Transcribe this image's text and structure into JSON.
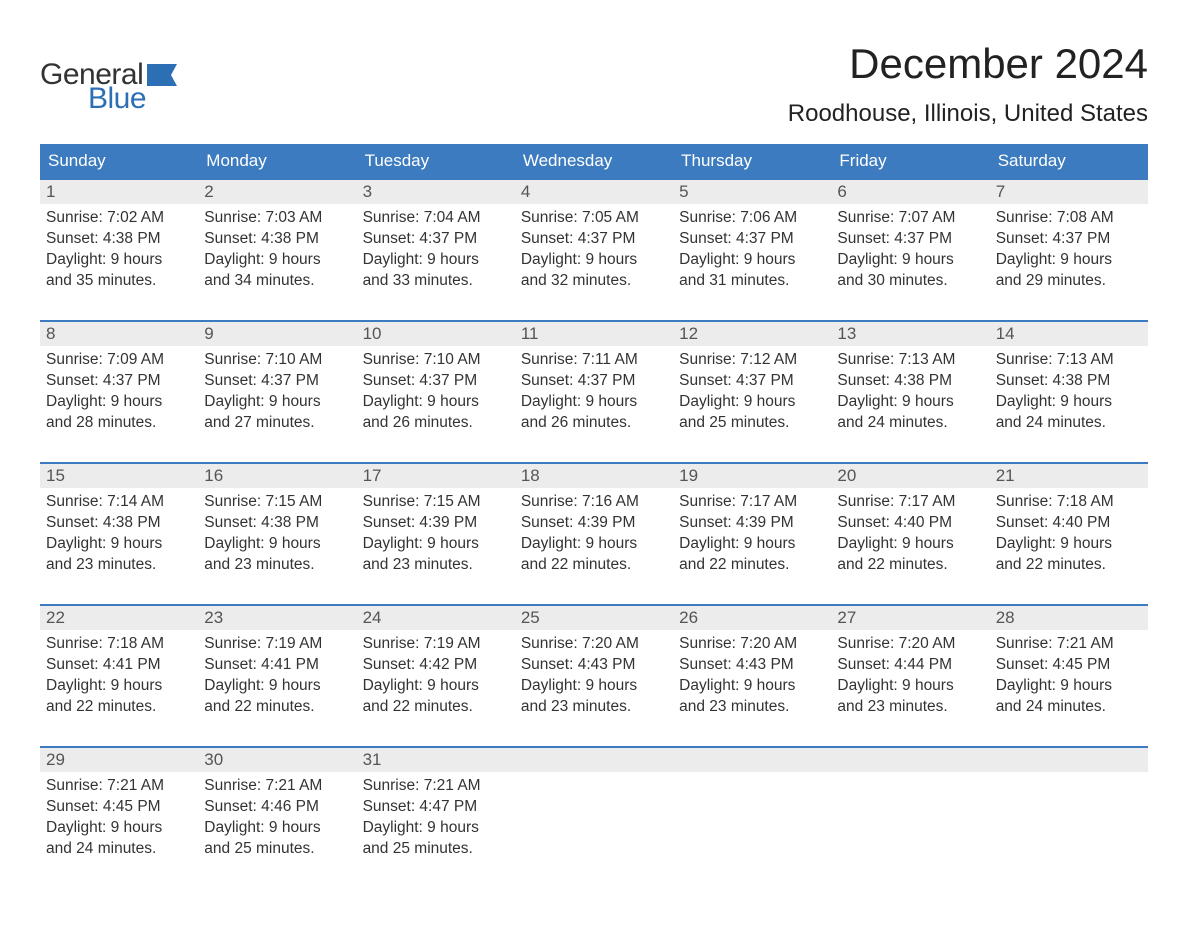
{
  "brand": {
    "word1": "General",
    "word2": "Blue",
    "flag_color": "#2c6fb5",
    "text_color_dark": "#333333",
    "text_color_blue": "#2c6fb5"
  },
  "header": {
    "month_title": "December 2024",
    "location": "Roodhouse, Illinois, United States"
  },
  "calendar": {
    "header_bg": "#3c7bbf",
    "header_fg": "#ffffff",
    "week_border_color": "#3c7bbf",
    "daynum_bg": "#ececec",
    "daynum_fg": "#555555",
    "body_fg": "#333333",
    "page_bg": "#ffffff",
    "dow": [
      "Sunday",
      "Monday",
      "Tuesday",
      "Wednesday",
      "Thursday",
      "Friday",
      "Saturday"
    ],
    "weeks": [
      [
        {
          "num": "1",
          "sunrise": "Sunrise: 7:02 AM",
          "sunset": "Sunset: 4:38 PM",
          "day1": "Daylight: 9 hours",
          "day2": "and 35 minutes."
        },
        {
          "num": "2",
          "sunrise": "Sunrise: 7:03 AM",
          "sunset": "Sunset: 4:38 PM",
          "day1": "Daylight: 9 hours",
          "day2": "and 34 minutes."
        },
        {
          "num": "3",
          "sunrise": "Sunrise: 7:04 AM",
          "sunset": "Sunset: 4:37 PM",
          "day1": "Daylight: 9 hours",
          "day2": "and 33 minutes."
        },
        {
          "num": "4",
          "sunrise": "Sunrise: 7:05 AM",
          "sunset": "Sunset: 4:37 PM",
          "day1": "Daylight: 9 hours",
          "day2": "and 32 minutes."
        },
        {
          "num": "5",
          "sunrise": "Sunrise: 7:06 AM",
          "sunset": "Sunset: 4:37 PM",
          "day1": "Daylight: 9 hours",
          "day2": "and 31 minutes."
        },
        {
          "num": "6",
          "sunrise": "Sunrise: 7:07 AM",
          "sunset": "Sunset: 4:37 PM",
          "day1": "Daylight: 9 hours",
          "day2": "and 30 minutes."
        },
        {
          "num": "7",
          "sunrise": "Sunrise: 7:08 AM",
          "sunset": "Sunset: 4:37 PM",
          "day1": "Daylight: 9 hours",
          "day2": "and 29 minutes."
        }
      ],
      [
        {
          "num": "8",
          "sunrise": "Sunrise: 7:09 AM",
          "sunset": "Sunset: 4:37 PM",
          "day1": "Daylight: 9 hours",
          "day2": "and 28 minutes."
        },
        {
          "num": "9",
          "sunrise": "Sunrise: 7:10 AM",
          "sunset": "Sunset: 4:37 PM",
          "day1": "Daylight: 9 hours",
          "day2": "and 27 minutes."
        },
        {
          "num": "10",
          "sunrise": "Sunrise: 7:10 AM",
          "sunset": "Sunset: 4:37 PM",
          "day1": "Daylight: 9 hours",
          "day2": "and 26 minutes."
        },
        {
          "num": "11",
          "sunrise": "Sunrise: 7:11 AM",
          "sunset": "Sunset: 4:37 PM",
          "day1": "Daylight: 9 hours",
          "day2": "and 26 minutes."
        },
        {
          "num": "12",
          "sunrise": "Sunrise: 7:12 AM",
          "sunset": "Sunset: 4:37 PM",
          "day1": "Daylight: 9 hours",
          "day2": "and 25 minutes."
        },
        {
          "num": "13",
          "sunrise": "Sunrise: 7:13 AM",
          "sunset": "Sunset: 4:38 PM",
          "day1": "Daylight: 9 hours",
          "day2": "and 24 minutes."
        },
        {
          "num": "14",
          "sunrise": "Sunrise: 7:13 AM",
          "sunset": "Sunset: 4:38 PM",
          "day1": "Daylight: 9 hours",
          "day2": "and 24 minutes."
        }
      ],
      [
        {
          "num": "15",
          "sunrise": "Sunrise: 7:14 AM",
          "sunset": "Sunset: 4:38 PM",
          "day1": "Daylight: 9 hours",
          "day2": "and 23 minutes."
        },
        {
          "num": "16",
          "sunrise": "Sunrise: 7:15 AM",
          "sunset": "Sunset: 4:38 PM",
          "day1": "Daylight: 9 hours",
          "day2": "and 23 minutes."
        },
        {
          "num": "17",
          "sunrise": "Sunrise: 7:15 AM",
          "sunset": "Sunset: 4:39 PM",
          "day1": "Daylight: 9 hours",
          "day2": "and 23 minutes."
        },
        {
          "num": "18",
          "sunrise": "Sunrise: 7:16 AM",
          "sunset": "Sunset: 4:39 PM",
          "day1": "Daylight: 9 hours",
          "day2": "and 22 minutes."
        },
        {
          "num": "19",
          "sunrise": "Sunrise: 7:17 AM",
          "sunset": "Sunset: 4:39 PM",
          "day1": "Daylight: 9 hours",
          "day2": "and 22 minutes."
        },
        {
          "num": "20",
          "sunrise": "Sunrise: 7:17 AM",
          "sunset": "Sunset: 4:40 PM",
          "day1": "Daylight: 9 hours",
          "day2": "and 22 minutes."
        },
        {
          "num": "21",
          "sunrise": "Sunrise: 7:18 AM",
          "sunset": "Sunset: 4:40 PM",
          "day1": "Daylight: 9 hours",
          "day2": "and 22 minutes."
        }
      ],
      [
        {
          "num": "22",
          "sunrise": "Sunrise: 7:18 AM",
          "sunset": "Sunset: 4:41 PM",
          "day1": "Daylight: 9 hours",
          "day2": "and 22 minutes."
        },
        {
          "num": "23",
          "sunrise": "Sunrise: 7:19 AM",
          "sunset": "Sunset: 4:41 PM",
          "day1": "Daylight: 9 hours",
          "day2": "and 22 minutes."
        },
        {
          "num": "24",
          "sunrise": "Sunrise: 7:19 AM",
          "sunset": "Sunset: 4:42 PM",
          "day1": "Daylight: 9 hours",
          "day2": "and 22 minutes."
        },
        {
          "num": "25",
          "sunrise": "Sunrise: 7:20 AM",
          "sunset": "Sunset: 4:43 PM",
          "day1": "Daylight: 9 hours",
          "day2": "and 23 minutes."
        },
        {
          "num": "26",
          "sunrise": "Sunrise: 7:20 AM",
          "sunset": "Sunset: 4:43 PM",
          "day1": "Daylight: 9 hours",
          "day2": "and 23 minutes."
        },
        {
          "num": "27",
          "sunrise": "Sunrise: 7:20 AM",
          "sunset": "Sunset: 4:44 PM",
          "day1": "Daylight: 9 hours",
          "day2": "and 23 minutes."
        },
        {
          "num": "28",
          "sunrise": "Sunrise: 7:21 AM",
          "sunset": "Sunset: 4:45 PM",
          "day1": "Daylight: 9 hours",
          "day2": "and 24 minutes."
        }
      ],
      [
        {
          "num": "29",
          "sunrise": "Sunrise: 7:21 AM",
          "sunset": "Sunset: 4:45 PM",
          "day1": "Daylight: 9 hours",
          "day2": "and 24 minutes."
        },
        {
          "num": "30",
          "sunrise": "Sunrise: 7:21 AM",
          "sunset": "Sunset: 4:46 PM",
          "day1": "Daylight: 9 hours",
          "day2": "and 25 minutes."
        },
        {
          "num": "31",
          "sunrise": "Sunrise: 7:21 AM",
          "sunset": "Sunset: 4:47 PM",
          "day1": "Daylight: 9 hours",
          "day2": "and 25 minutes."
        },
        {
          "empty": true
        },
        {
          "empty": true
        },
        {
          "empty": true
        },
        {
          "empty": true
        }
      ]
    ]
  }
}
